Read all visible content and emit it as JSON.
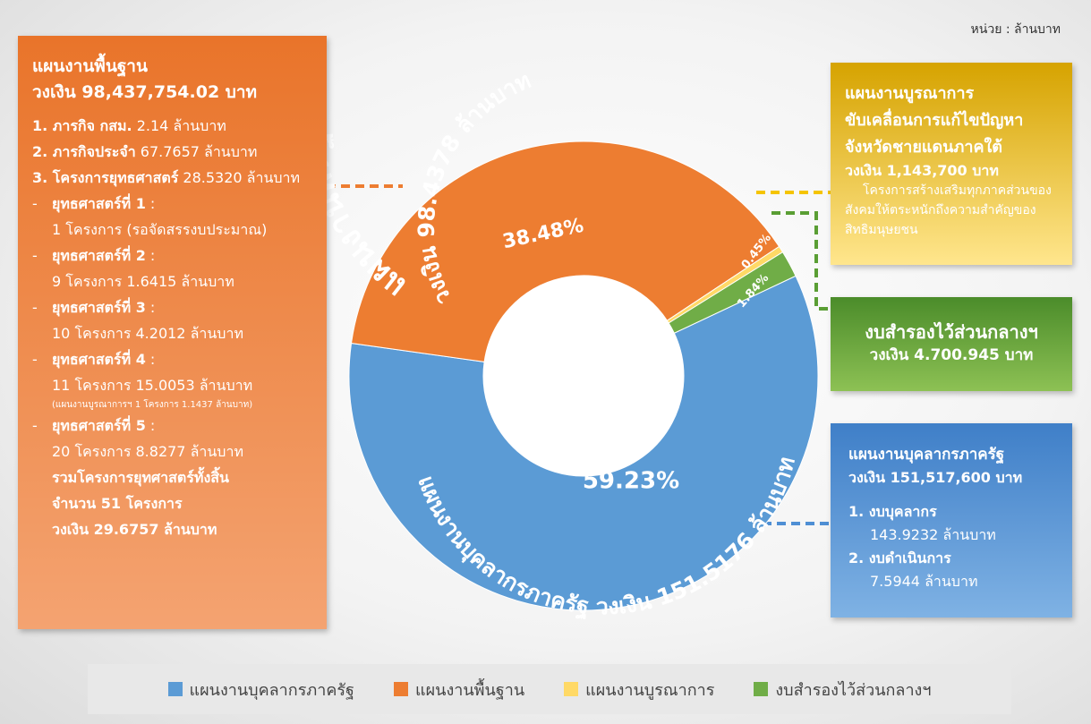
{
  "unit_note": "หน่วย : ล้านบาท",
  "chart_data": {
    "type": "pie",
    "categories": [
      "แผนงานบุคลากรภาครัฐ",
      "แผนงานพื้นฐาน",
      "แผนงานบูรณาการ",
      "งบสำรองไว้ส่วนกลางฯ"
    ],
    "values": [
      59.23,
      38.48,
      0.45,
      1.84
    ],
    "value_labels": [
      "59.23%",
      "38.48%",
      "0.45%",
      "1.84%"
    ],
    "colors": [
      "#5b9bd5",
      "#ed7d31",
      "#ffd966",
      "#70ad47"
    ],
    "annotations": [
      "แผนงานบุคลากรภาครัฐ วงเงิน 151.5176 ล้านบาท",
      "แผนงานพื้นฐาน",
      "วงเงิน 98.4378 ล้านบาท"
    ],
    "legend": true
  },
  "basic_panel": {
    "title": "แผนงานพื้นฐาน",
    "budget": "วงเงิน 98,437,754.02 บาท",
    "items": [
      {
        "b": "1. ภารกิจ กสม.",
        "t": "2.14 ล้านบาท"
      },
      {
        "b": "2. ภารกิจประจำ",
        "t": "67.7657 ล้านบาท"
      },
      {
        "b": "3. โครงการยุทธศาสตร์",
        "t": "28.5320 ล้านบาท"
      }
    ],
    "strategies": [
      {
        "b": "ยุทธศาสตร์ที่ 1",
        "t": ":",
        "d": "1 โครงการ (รอจัดสรรงบประมาณ)"
      },
      {
        "b": "ยุทธศาสตร์ที่ 2",
        "t": ":",
        "d": "9 โครงการ 1.6415 ล้านบาท"
      },
      {
        "b": "ยุทธศาสตร์ที่ 3",
        "t": ":",
        "d": "10 โครงการ 4.2012 ล้านบาท"
      },
      {
        "b": "ยุทธศาสตร์ที่ 4",
        "t": ":",
        "d": "11 โครงการ 15.0053 ล้านบาท",
        "n": "(แผนงานบูรณาการฯ 1 โครงการ 1.1437 ล้านบาท)"
      },
      {
        "b": "ยุทธศาสตร์ที่ 5",
        "t": ":",
        "d": "20 โครงการ 8.8277 ล้านบาท"
      }
    ],
    "summary": [
      "รวมโครงการยุทศาสตร์ทั้งสิ้น",
      "จำนวน 51 โครงการ",
      "วงเงิน 29.6757 ล้านบาท"
    ]
  },
  "integration_panel": {
    "title": [
      "แผนงานบูรณาการ",
      "ขับเคลื่อนการแก้ไขปัญหา",
      "จังหวัดชายแดนภาคใต้"
    ],
    "budget": "วงเงิน 1,143,700 บาท",
    "body": "โครงการสร้างเสริมทุกภาคส่วนของสังคมให้ตระหนักถึงความสำคัญของสิทธิมนุษยชน"
  },
  "reserve_panel": {
    "title": "งบสำรองไว้ส่วนกลางฯ",
    "budget": "วงเงิน 4.700.945 บาท"
  },
  "personnel_panel": {
    "title": "แผนงานบุคลากรภาครัฐ",
    "budget": "วงเงิน 151,517,600 บาท",
    "items": [
      {
        "b": "1. งบบุคลากร",
        "t": "143.9232 ล้านบาท"
      },
      {
        "b": "2. งบดำเนินการ",
        "t": "7.5944 ล้านบาท"
      }
    ]
  }
}
